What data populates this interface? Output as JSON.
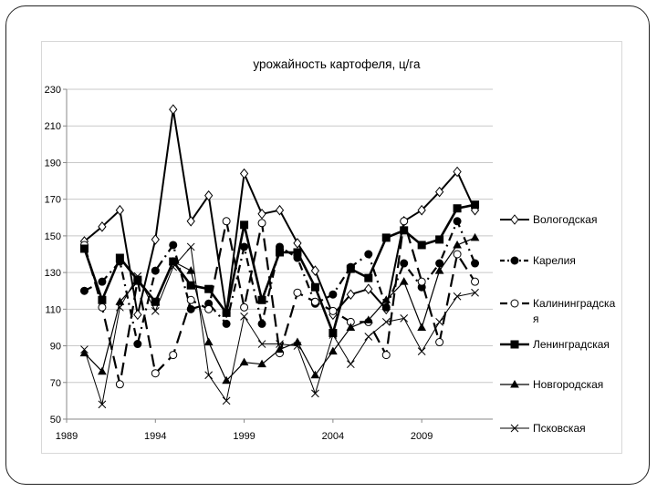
{
  "chart_data": {
    "type": "line",
    "title": "урожайность картофеля, ц/га",
    "xlabel": "",
    "ylabel": "",
    "xlim": [
      1989,
      2013
    ],
    "ylim": [
      50,
      230
    ],
    "x_ticks": [
      1989,
      1994,
      1999,
      2004,
      2009
    ],
    "y_ticks": [
      50,
      70,
      90,
      110,
      130,
      150,
      170,
      190,
      210,
      230
    ],
    "grid": "horizontal",
    "legend_position": "right",
    "x": [
      1990,
      1991,
      1992,
      1993,
      1994,
      1995,
      1996,
      1997,
      1998,
      1999,
      2000,
      2001,
      2002,
      2003,
      2004,
      2005,
      2006,
      2007,
      2008,
      2009,
      2010,
      2011,
      2012
    ],
    "series": [
      {
        "name": "Вологодская",
        "style": "solid-diamond",
        "values": [
          147,
          155,
          164,
          107,
          148,
          219,
          158,
          172,
          108,
          184,
          162,
          164,
          146,
          131,
          107,
          118,
          121,
          110,
          158,
          164,
          174,
          185,
          164
        ]
      },
      {
        "name": "Карелия",
        "style": "dash-dot-circle-filled",
        "values": [
          120,
          125,
          136,
          91,
          131,
          145,
          110,
          113,
          102,
          144,
          102,
          144,
          138,
          113,
          118,
          133,
          140,
          111,
          135,
          122,
          135,
          158,
          135
        ]
      },
      {
        "name": "Калининградская",
        "style": "long-dash-circle-open",
        "values": [
          145,
          111,
          69,
          126,
          75,
          85,
          115,
          110,
          158,
          111,
          157,
          86,
          119,
          114,
          109,
          103,
          103,
          85,
          158,
          125,
          92,
          140,
          125
        ]
      },
      {
        "name": "Ленинградская",
        "style": "solid-square-thick",
        "values": [
          143,
          115,
          138,
          126,
          114,
          136,
          123,
          121,
          108,
          156,
          115,
          141,
          141,
          122,
          97,
          132,
          127,
          149,
          153,
          145,
          148,
          165,
          167
        ]
      },
      {
        "name": "Новгородская",
        "style": "solid-triangle",
        "values": [
          86,
          76,
          114,
          125,
          114,
          136,
          131,
          92,
          71,
          81,
          80,
          88,
          92,
          74,
          87,
          100,
          104,
          115,
          125,
          100,
          131,
          145,
          149
        ]
      },
      {
        "name": "Псковская",
        "style": "thin-x",
        "values": [
          88,
          58,
          111,
          128,
          109,
          133,
          144,
          74,
          60,
          106,
          91,
          91,
          90,
          64,
          96,
          80,
          95,
          103,
          105,
          87,
          103,
          117,
          119
        ]
      }
    ]
  }
}
